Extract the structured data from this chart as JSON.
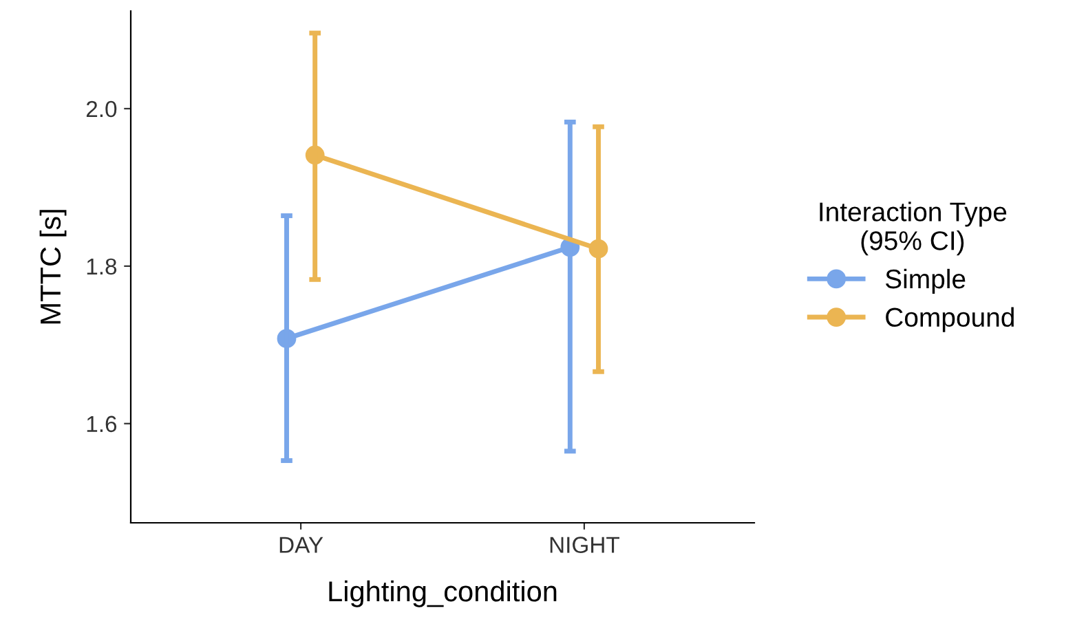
{
  "chart_data": {
    "type": "line",
    "xlabel": "Lighting_condition",
    "ylabel": "MTTC [s]",
    "legend_title": "Interaction Type\n(95% CI)",
    "categories": [
      "DAY",
      "NIGHT"
    ],
    "series": [
      {
        "name": "Simple",
        "color": "#79a6ea",
        "values": [
          1.708,
          1.824
        ],
        "errors": [
          [
            1.553,
            1.864
          ],
          [
            1.565,
            1.983
          ]
        ]
      },
      {
        "name": "Compound",
        "color": "#ebb552",
        "values": [
          1.941,
          1.822
        ],
        "errors": [
          [
            1.783,
            2.096
          ],
          [
            1.666,
            1.977
          ]
        ]
      }
    ],
    "ylim": [
      1.474,
      2.124
    ],
    "yticks": [
      {
        "value": 1.6,
        "label": "1.6"
      },
      {
        "value": 1.8,
        "label": "1.8"
      },
      {
        "value": 2.0,
        "label": "2.0"
      }
    ],
    "grid": false,
    "legend": "right",
    "marker": "circle",
    "line_style": "solid"
  }
}
